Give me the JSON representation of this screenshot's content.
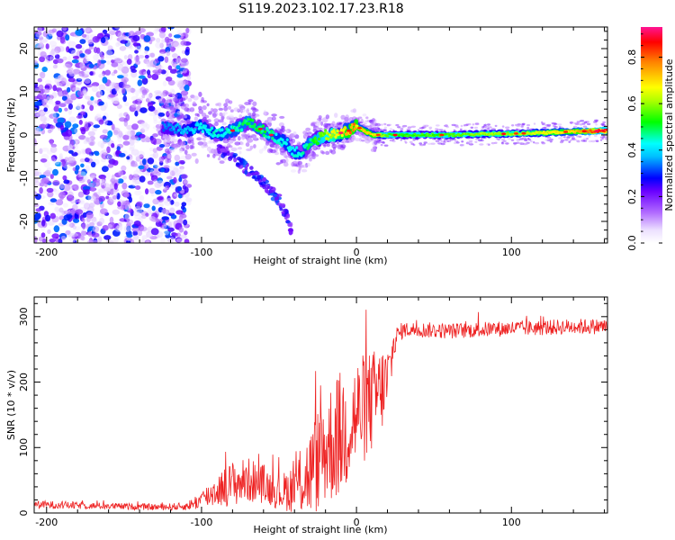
{
  "title": "S119.2023.102.17.23.R18",
  "colors": {
    "snr_line": "#ee2222",
    "spectrogram_low": "#8a2be2",
    "spectrogram_mid": "#00e5ff",
    "spectrogram_high": "#ff1f5a"
  },
  "chart_data": [
    {
      "type": "heatmap",
      "name": "spectrogram",
      "xlabel": "Height of straight line (km)",
      "ylabel": "Frequency (Hz)",
      "xlim": [
        -208,
        162
      ],
      "ylim": [
        -25,
        25
      ],
      "xticks": [
        -200,
        -100,
        0,
        100
      ],
      "yticks": [
        -20,
        -10,
        0,
        10,
        20
      ],
      "colorbar": {
        "label": "Normalized spectral amplitude",
        "range": [
          0.0,
          0.93
        ],
        "ticks": [
          0.0,
          0.2,
          0.4,
          0.6,
          0.8
        ],
        "tick_labels": [
          "0.0",
          "0.2",
          "0.4",
          "0.6",
          "0.8"
        ],
        "colormap": "rainbow (white, purple, blue, cyan, green, yellow, orange, red, magenta)"
      },
      "features": {
        "noise_region_x": [
          -208,
          -112
        ],
        "noise_amplitude": [
          0.05,
          0.35
        ],
        "signal_track": {
          "x": [
            -125,
            -110,
            -100,
            -90,
            -80,
            -70,
            -60,
            -50,
            -45,
            -40,
            -35,
            -30,
            -25,
            -20,
            -15,
            -10,
            -5,
            0,
            5,
            10,
            20,
            40,
            60,
            80,
            100,
            120,
            140,
            162
          ],
          "frequency": [
            2,
            1,
            2,
            0,
            1,
            3,
            1,
            -1,
            -2,
            -4,
            -4,
            -2,
            -1,
            0,
            0,
            0.5,
            1,
            2,
            1,
            0,
            0,
            0,
            0,
            0.2,
            0.3,
            0.5,
            0.8,
            1.0
          ],
          "amplitude": [
            0.3,
            0.35,
            0.4,
            0.4,
            0.42,
            0.45,
            0.45,
            0.4,
            0.4,
            0.4,
            0.4,
            0.45,
            0.5,
            0.55,
            0.6,
            0.65,
            0.7,
            0.7,
            0.7,
            0.7,
            0.55,
            0.55,
            0.55,
            0.6,
            0.6,
            0.65,
            0.7,
            0.9
          ]
        },
        "secondary_track": {
          "x": [
            -90,
            -80,
            -70,
            -60,
            -50,
            -45,
            -42
          ],
          "frequency": [
            -3,
            -5,
            -8,
            -11,
            -15,
            -19,
            -22
          ],
          "amplitude": [
            0.25,
            0.28,
            0.3,
            0.3,
            0.3,
            0.3,
            0.25
          ]
        }
      }
    },
    {
      "type": "line",
      "name": "snr",
      "xlabel": "Height of straight line (km)",
      "ylabel": "SNR (10 * v/v)",
      "xlim": [
        -208,
        162
      ],
      "ylim": [
        0,
        330
      ],
      "xticks": [
        -200,
        -100,
        0,
        100
      ],
      "yticks": [
        0,
        100,
        200,
        300
      ],
      "series": [
        {
          "name": "SNR",
          "x": [
            -208,
            -190,
            -170,
            -150,
            -130,
            -110,
            -100,
            -90,
            -80,
            -70,
            -60,
            -50,
            -40,
            -30,
            -20,
            -10,
            0,
            10,
            20,
            25,
            30,
            40,
            60,
            80,
            100,
            120,
            140,
            162
          ],
          "values": [
            13,
            12,
            11,
            10,
            9,
            10,
            20,
            35,
            45,
            50,
            45,
            30,
            40,
            60,
            100,
            120,
            150,
            170,
            200,
            265,
            280,
            280,
            278,
            280,
            282,
            283,
            285,
            285
          ],
          "noise_amplitude": [
            6,
            6,
            5,
            5,
            5,
            6,
            15,
            25,
            35,
            35,
            30,
            25,
            40,
            70,
            90,
            100,
            90,
            80,
            60,
            20,
            12,
            12,
            12,
            12,
            12,
            12,
            12,
            12
          ]
        }
      ]
    }
  ]
}
